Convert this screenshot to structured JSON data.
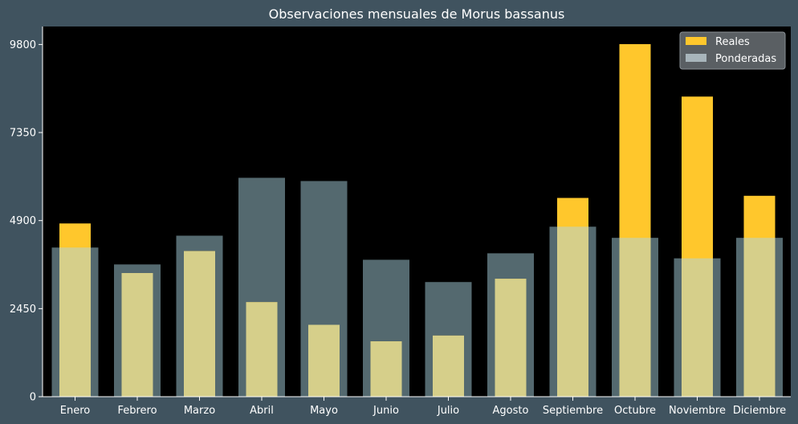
{
  "chart_data": {
    "type": "bar",
    "title": "Observaciones mensuales de Morus bassanus",
    "xlabel": "",
    "ylabel": "",
    "categories": [
      "Enero",
      "Febrero",
      "Marzo",
      "Abril",
      "Mayo",
      "Junio",
      "Julio",
      "Agosto",
      "Septiembre",
      "Octubre",
      "Noviembre",
      "Diciembre"
    ],
    "series": [
      {
        "name": "Reales",
        "color": "#ffc72c",
        "values": [
          4820,
          3440,
          4050,
          2630,
          2000,
          1540,
          1700,
          3280,
          5530,
          9810,
          8350,
          5590
        ]
      },
      {
        "name": "Ponderadas",
        "color": "#a8b5bb",
        "values": [
          4150,
          3680,
          4480,
          6090,
          6000,
          3810,
          3190,
          3990,
          4730,
          4420,
          3850,
          4420
        ]
      }
    ],
    "ylim": [
      0,
      10300
    ],
    "yticks": [
      0,
      2450,
      4900,
      7350,
      9800
    ],
    "grid": false,
    "legend_position": "top-right",
    "colors": {
      "figure_background": "#40535f",
      "plot_background": "#000000",
      "ponderadas_fill": "#54696f",
      "overlap_fill": "#d6cf8a"
    }
  }
}
